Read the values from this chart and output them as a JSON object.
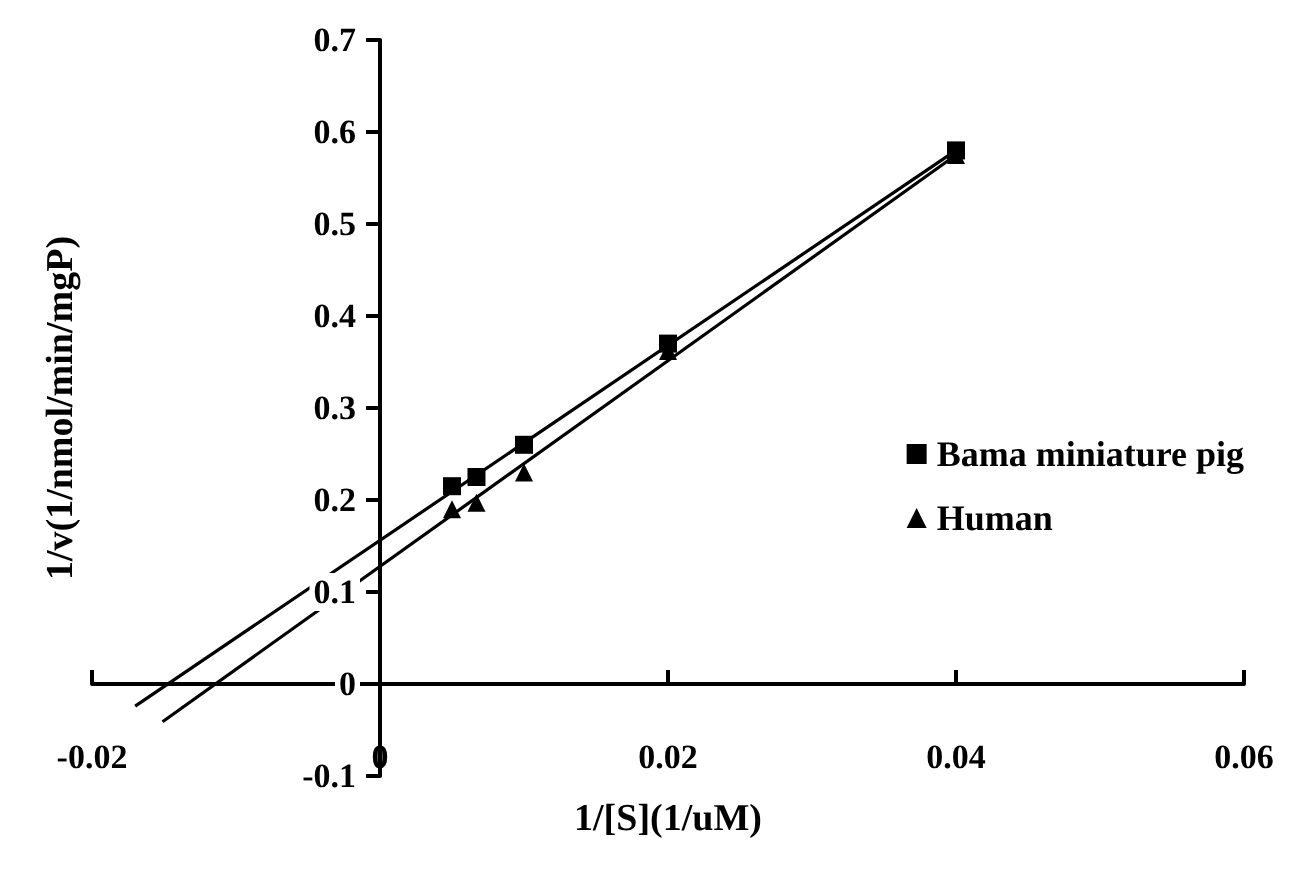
{
  "chart_data": {
    "type": "scatter",
    "xlabel": "1/[S](1/uM)",
    "ylabel": "1/v(1/nmol/min/mgP)",
    "xlim": [
      -0.02,
      0.06
    ],
    "xticks": [
      -0.02,
      0,
      0.02,
      0.04,
      0.06
    ],
    "ylim": [
      -0.1,
      0.7
    ],
    "yticks": [
      -0.1,
      0,
      0.1,
      0.2,
      0.3,
      0.4,
      0.5,
      0.6,
      0.7
    ],
    "grid": false,
    "legend": "right",
    "series": [
      {
        "name": "Bama miniature pig",
        "color": "#000000",
        "marker": "square",
        "x": [
          0.005,
          0.0067,
          0.01,
          0.02,
          0.04
        ],
        "values": [
          0.215,
          0.225,
          0.26,
          0.37,
          0.58
        ]
      },
      {
        "name": "Human",
        "color": "#000000",
        "marker": "triangle",
        "x": [
          0.005,
          0.0067,
          0.01,
          0.02,
          0.04
        ],
        "values": [
          0.19,
          0.197,
          0.23,
          0.362,
          0.575
        ]
      },
      {
        "type": "line",
        "color": "#000000",
        "marker": "none",
        "x": [
          -0.017,
          0.04
        ],
        "values": [
          -0.024,
          0.58
        ]
      },
      {
        "type": "line",
        "color": "#000000",
        "marker": "none",
        "x": [
          -0.0151,
          0.04
        ],
        "values": [
          -0.041,
          0.575
        ]
      }
    ]
  }
}
